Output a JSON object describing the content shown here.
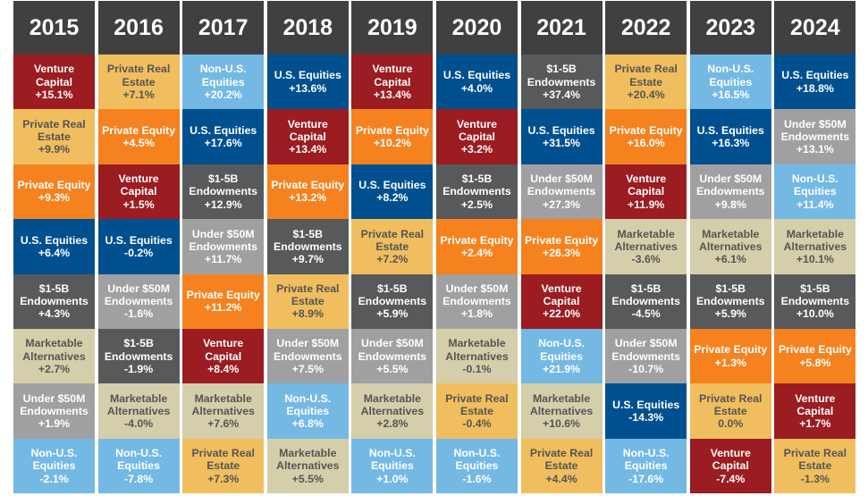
{
  "chart_data": {
    "type": "table",
    "title": "",
    "colors": {
      "header": "#404041",
      "Venture Capital": "#9b1c21",
      "Private Real Estate": "#f0be5e",
      "Private Equity": "#f5821f",
      "U.S. Equities": "#00508f",
      "Non-U.S. Equities": "#74b9e4",
      "$1-5B Endowments": "#58595b",
      "Under $50M Endowments": "#a0a0a2",
      "Marketable Alternatives": "#d5ceaa"
    },
    "dark_text_classes": [
      "Private Real Estate",
      "Marketable Alternatives"
    ],
    "columns": [
      {
        "year": "2015",
        "cells": [
          {
            "label": "Venture Capital",
            "value": "+15.1%"
          },
          {
            "label": "Private Real Estate",
            "value": "+9.9%"
          },
          {
            "label": "Private Equity",
            "value": "+9.3%"
          },
          {
            "label": "U.S. Equities",
            "value": "+6.4%"
          },
          {
            "label": "$1-5B Endowments",
            "value": "+4.3%"
          },
          {
            "label": "Marketable Alternatives",
            "value": "+2.7%"
          },
          {
            "label": "Under $50M Endowments",
            "value": "+1.9%"
          },
          {
            "label": "Non-U.S. Equities",
            "value": "-2.1%"
          }
        ]
      },
      {
        "year": "2016",
        "cells": [
          {
            "label": "Private Real Estate",
            "value": "+7.1%"
          },
          {
            "label": "Private Equity",
            "value": "+4.5%"
          },
          {
            "label": "Venture Capital",
            "value": "+1.5%"
          },
          {
            "label": "U.S. Equities",
            "value": "-0.2%"
          },
          {
            "label": "Under $50M Endowments",
            "value": "-1.6%"
          },
          {
            "label": "$1-5B Endowments",
            "value": "-1.9%"
          },
          {
            "label": "Marketable Alternatives",
            "value": "-4.0%"
          },
          {
            "label": "Non-U.S. Equities",
            "value": "-7.8%"
          }
        ]
      },
      {
        "year": "2017",
        "cells": [
          {
            "label": "Non-U.S. Equities",
            "value": "+20.2%"
          },
          {
            "label": "U.S. Equities",
            "value": "+17.6%"
          },
          {
            "label": "$1-5B Endowments",
            "value": "+12.9%"
          },
          {
            "label": "Under $50M Endowments",
            "value": "+11.7%"
          },
          {
            "label": "Private Equity",
            "value": "+11.2%"
          },
          {
            "label": "Venture Capital",
            "value": "+8.4%"
          },
          {
            "label": "Marketable Alternatives",
            "value": "+7.6%"
          },
          {
            "label": "Private Real Estate",
            "value": "+7.3%"
          }
        ]
      },
      {
        "year": "2018",
        "cells": [
          {
            "label": "U.S. Equities",
            "value": "+13.6%"
          },
          {
            "label": "Venture Capital",
            "value": "+13.4%"
          },
          {
            "label": "Private Equity",
            "value": "+13.2%"
          },
          {
            "label": "$1-5B Endowments",
            "value": "+9.7%"
          },
          {
            "label": "Private Real Estate",
            "value": "+8.9%"
          },
          {
            "label": "Under $50M Endowments",
            "value": "+7.5%"
          },
          {
            "label": "Non-U.S. Equities",
            "value": "+6.8%"
          },
          {
            "label": "Marketable Alternatives",
            "value": "+5.5%"
          }
        ]
      },
      {
        "year": "2019",
        "cells": [
          {
            "label": "Venture Capital",
            "value": "+13.4%"
          },
          {
            "label": "Private Equity",
            "value": "+10.2%"
          },
          {
            "label": "U.S. Equities",
            "value": "+8.2%"
          },
          {
            "label": "Private Real Estate",
            "value": "+7.2%"
          },
          {
            "label": "$1-5B Endowments",
            "value": "+5.9%"
          },
          {
            "label": "Under $50M Endowments",
            "value": "+5.5%"
          },
          {
            "label": "Marketable Alternatives",
            "value": "+2.8%"
          },
          {
            "label": "Non-U.S. Equities",
            "value": "+1.0%"
          }
        ]
      },
      {
        "year": "2020",
        "cells": [
          {
            "label": "U.S. Equities",
            "value": "+4.0%"
          },
          {
            "label": "Venture Capital",
            "value": "+3.2%"
          },
          {
            "label": "$1-5B Endowments",
            "value": "+2.5%"
          },
          {
            "label": "Private Equity",
            "value": "+2.4%"
          },
          {
            "label": "Under $50M Endowments",
            "value": "+1.8%"
          },
          {
            "label": "Marketable Alternatives",
            "value": "-0.1%"
          },
          {
            "label": "Private Real Estate",
            "value": "-0.4%"
          },
          {
            "label": "Non-U.S. Equities",
            "value": "-1.6%"
          }
        ]
      },
      {
        "year": "2021",
        "cells": [
          {
            "label": "$1-5B Endowments",
            "value": "+37.4%"
          },
          {
            "label": "U.S. Equities",
            "value": "+31.5%"
          },
          {
            "label": "Under $50M Endowments",
            "value": "+27.3%"
          },
          {
            "label": "Private Equity",
            "value": "+26.3%"
          },
          {
            "label": "Venture Capital",
            "value": "+22.0%"
          },
          {
            "label": "Non-U.S. Equities",
            "value": "+21.9%"
          },
          {
            "label": "Marketable Alternatives",
            "value": "+10.6%"
          },
          {
            "label": "Private Real Estate",
            "value": "+4.4%"
          }
        ]
      },
      {
        "year": "2022",
        "cells": [
          {
            "label": "Private Real Estate",
            "value": "+20.4%"
          },
          {
            "label": "Private Equity",
            "value": "+16.0%"
          },
          {
            "label": "Venture Capital",
            "value": "+11.9%"
          },
          {
            "label": "Marketable Alternatives",
            "value": "-3.6%"
          },
          {
            "label": "$1-5B Endowments",
            "value": "-4.5%"
          },
          {
            "label": "Under $50M Endowments",
            "value": "-10.7%"
          },
          {
            "label": "U.S. Equities",
            "value": "-14.3%"
          },
          {
            "label": "Non-U.S. Equities",
            "value": "-17.6%"
          }
        ]
      },
      {
        "year": "2023",
        "cells": [
          {
            "label": "Non-U.S. Equities",
            "value": "+16.5%"
          },
          {
            "label": "U.S. Equities",
            "value": "+16.3%"
          },
          {
            "label": "Under $50M Endowments",
            "value": "+9.8%"
          },
          {
            "label": "Marketable Alternatives",
            "value": "+6.1%"
          },
          {
            "label": "$1-5B Endowments",
            "value": "+5.9%"
          },
          {
            "label": "Private Equity",
            "value": "+1.3%"
          },
          {
            "label": "Private Real Estate",
            "value": "0.0%"
          },
          {
            "label": "Venture Capital",
            "value": "-7.4%"
          }
        ]
      },
      {
        "year": "2024",
        "cells": [
          {
            "label": "U.S. Equities",
            "value": "+18.8%"
          },
          {
            "label": "Under $50M Endowments",
            "value": "+13.1%"
          },
          {
            "label": "Non-U.S. Equities",
            "value": "+11.4%"
          },
          {
            "label": "Marketable Alternatives",
            "value": "+10.1%"
          },
          {
            "label": "$1-5B Endowments",
            "value": "+10.0%"
          },
          {
            "label": "Private Equity",
            "value": "+5.8%"
          },
          {
            "label": "Venture Capital",
            "value": "+1.7%"
          },
          {
            "label": "Private Real Estate",
            "value": "-1.3%"
          }
        ]
      }
    ]
  }
}
